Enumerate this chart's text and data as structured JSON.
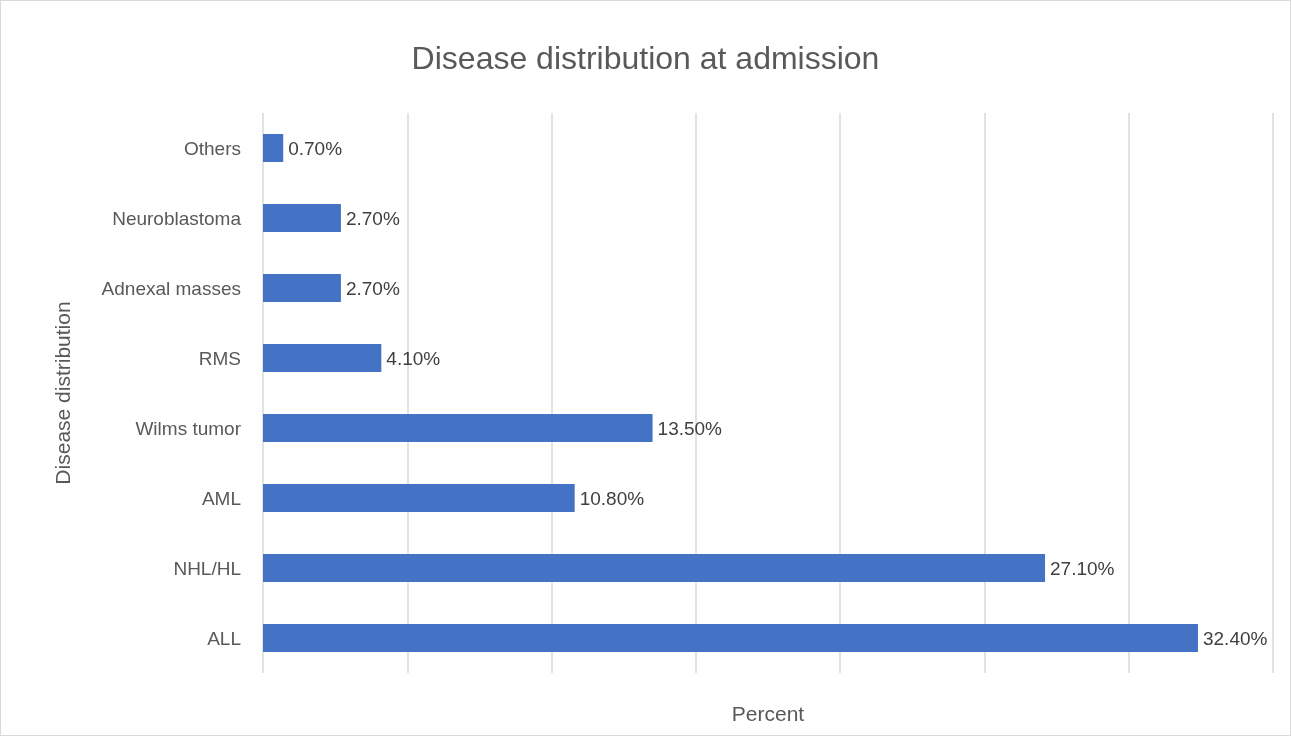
{
  "chart_data": {
    "type": "bar",
    "title": "Disease distribution at admission",
    "xlabel": "Percent",
    "ylabel": "Disease distribution",
    "orientation": "horizontal",
    "categories": [
      "Others",
      "Neuroblastoma",
      "Adnexal masses",
      "RMS",
      "Wilms tumor",
      "AML",
      "NHL/HL",
      "ALL"
    ],
    "values": [
      0.7,
      2.7,
      2.7,
      4.1,
      13.5,
      10.8,
      27.1,
      32.4
    ],
    "value_labels": [
      "0.70%",
      "2.70%",
      "2.70%",
      "4.10%",
      "13.50%",
      "10.80%",
      "27.10%",
      "32.40%"
    ],
    "color": "#4472c4",
    "xlim": [
      0,
      35
    ],
    "xticks": [
      {
        "value": 0,
        "label": null
      },
      {
        "value": 5,
        "label": null
      },
      {
        "value": 10,
        "label": null
      },
      {
        "value": 15,
        "label": null
      },
      {
        "value": 20,
        "label": null
      },
      {
        "value": 25,
        "label": null
      },
      {
        "value": 30,
        "label": null
      },
      {
        "value": 35,
        "label": null
      }
    ],
    "grid": "x",
    "tick_labels": "y"
  }
}
